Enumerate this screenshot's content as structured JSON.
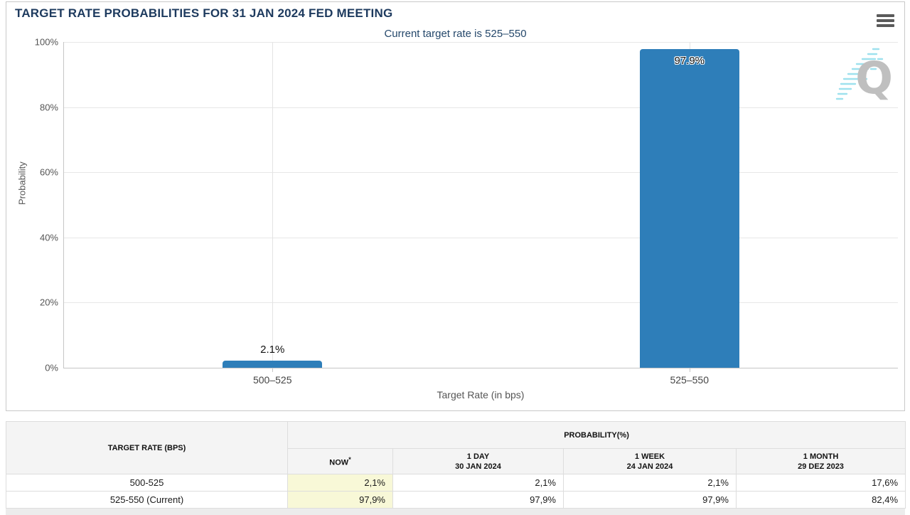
{
  "chart": {
    "title": "TARGET RATE PROBABILITIES FOR 31 JAN 2024 FED MEETING",
    "subtitle": "Current target rate is 525–550",
    "y_axis_title": "Probability",
    "x_axis_title": "Target Rate (in bps)",
    "y_tick_labels": [
      "100%",
      "80%",
      "60%",
      "40%",
      "20%",
      "0%"
    ],
    "watermark_letter": "Q",
    "menu_icon": "hamburger-menu-icon"
  },
  "chart_data": {
    "type": "bar",
    "title": "TARGET RATE PROBABILITIES FOR 31 JAN 2024 FED MEETING",
    "subtitle": "Current target rate is 525–550",
    "categories": [
      "500–525",
      "525–550"
    ],
    "values": [
      2.1,
      97.9
    ],
    "data_labels": [
      "2.1%",
      "97.9%"
    ],
    "xlabel": "Target Rate (in bps)",
    "ylabel": "Probability",
    "ylim": [
      0,
      100
    ],
    "y_ticks": [
      0,
      20,
      40,
      60,
      80,
      100
    ],
    "bar_color": "#2e7eb9",
    "grid": true,
    "legend": false
  },
  "table": {
    "headers": {
      "target_rate": "TARGET RATE (BPS)",
      "probability_group": "PROBABILITY(%)",
      "now": "NOW",
      "now_superscript": "*",
      "cols": [
        {
          "period": "1 DAY",
          "date": "30 JAN 2024"
        },
        {
          "period": "1 WEEK",
          "date": "24 JAN 2024"
        },
        {
          "period": "1 MONTH",
          "date": "29 DEZ 2023"
        }
      ]
    },
    "rows": [
      {
        "rate": "500-525",
        "now": "2,1%",
        "one_day": "2,1%",
        "one_week": "2,1%",
        "one_month": "17,6%"
      },
      {
        "rate": "525-550 (Current)",
        "now": "97,9%",
        "one_day": "97,9%",
        "one_week": "97,9%",
        "one_month": "82,4%"
      }
    ]
  },
  "colors": {
    "bar": "#2e7eb9",
    "title_text": "#1d3a5e",
    "now_column_bg": "#f8f8d7",
    "header_bg": "#f4f4f4"
  }
}
